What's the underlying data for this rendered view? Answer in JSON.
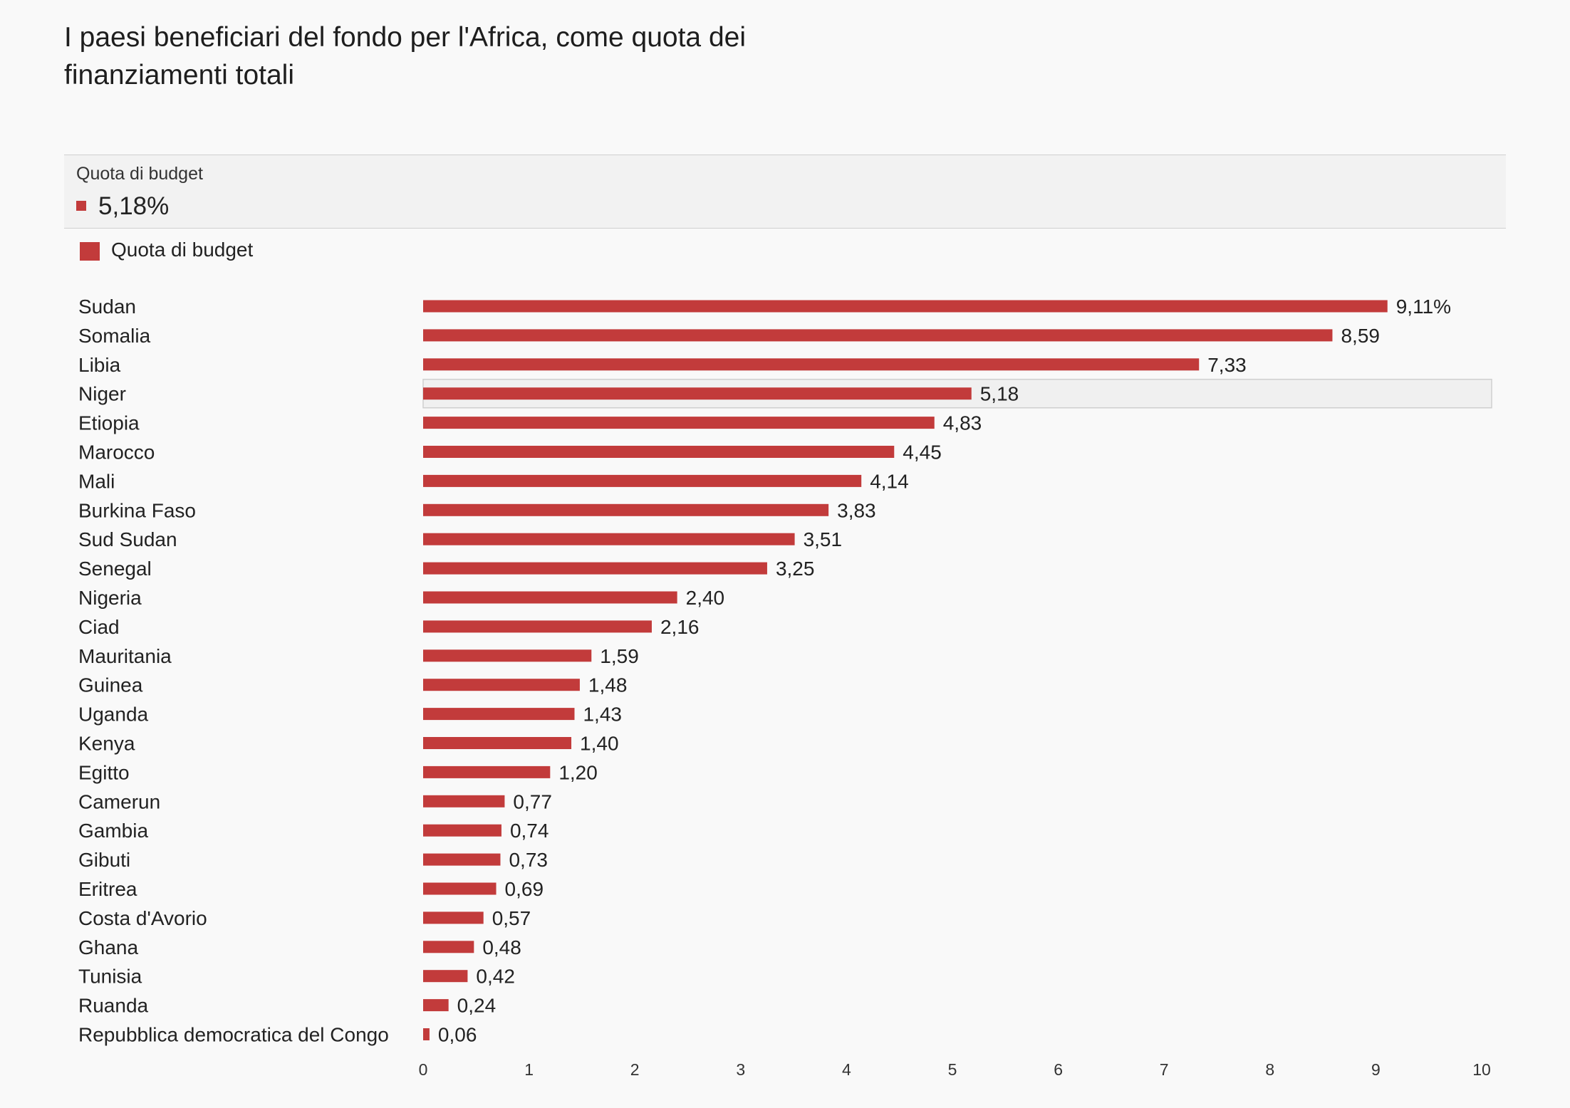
{
  "title": "I paesi beneficiari del fondo per l'Africa, come quota dei finanziamenti totali",
  "tooltip": {
    "label": "Quota di budget",
    "value": "5,18%",
    "highlighted_category": "Niger"
  },
  "legend": {
    "label": "Quota di budget"
  },
  "colors": {
    "bar": "#c23b3b",
    "highlight_bg": "#f0f0f0",
    "highlight_border": "#cfcfcf",
    "background": "#f9f9f9"
  },
  "chart_data": {
    "type": "bar",
    "orientation": "horizontal",
    "title": "I paesi beneficiari del fondo per l'Africa, come quota dei finanziamenti totali",
    "categories": [
      "Sudan",
      "Somalia",
      "Libia",
      "Niger",
      "Etiopia",
      "Marocco",
      "Mali",
      "Burkina Faso",
      "Sud Sudan",
      "Senegal",
      "Nigeria",
      "Ciad",
      "Mauritania",
      "Guinea",
      "Uganda",
      "Kenya",
      "Egitto",
      "Camerun",
      "Gambia",
      "Gibuti",
      "Eritrea",
      "Costa d'Avorio",
      "Ghana",
      "Tunisia",
      "Ruanda",
      "Repubblica democratica del Congo"
    ],
    "series": [
      {
        "name": "Quota di budget",
        "values": [
          9.11,
          8.59,
          7.33,
          5.18,
          4.83,
          4.45,
          4.14,
          3.83,
          3.51,
          3.25,
          2.4,
          2.16,
          1.59,
          1.48,
          1.43,
          1.4,
          1.2,
          0.77,
          0.74,
          0.73,
          0.69,
          0.57,
          0.48,
          0.42,
          0.24,
          0.06
        ]
      }
    ],
    "value_labels": [
      "9,11%",
      "8,59",
      "7,33",
      "5,18",
      "4,83",
      "4,45",
      "4,14",
      "3,83",
      "3,51",
      "3,25",
      "2,40",
      "2,16",
      "1,59",
      "1,48",
      "1,43",
      "1,40",
      "1,20",
      "0,77",
      "0,74",
      "0,73",
      "0,69",
      "0,57",
      "0,48",
      "0,42",
      "0,24",
      "0,06"
    ],
    "xlim": [
      0,
      10
    ],
    "x_ticks": [
      0,
      1,
      2,
      3,
      4,
      5,
      6,
      7,
      8,
      9,
      10
    ],
    "legend_position": "top-left",
    "grid": false
  }
}
